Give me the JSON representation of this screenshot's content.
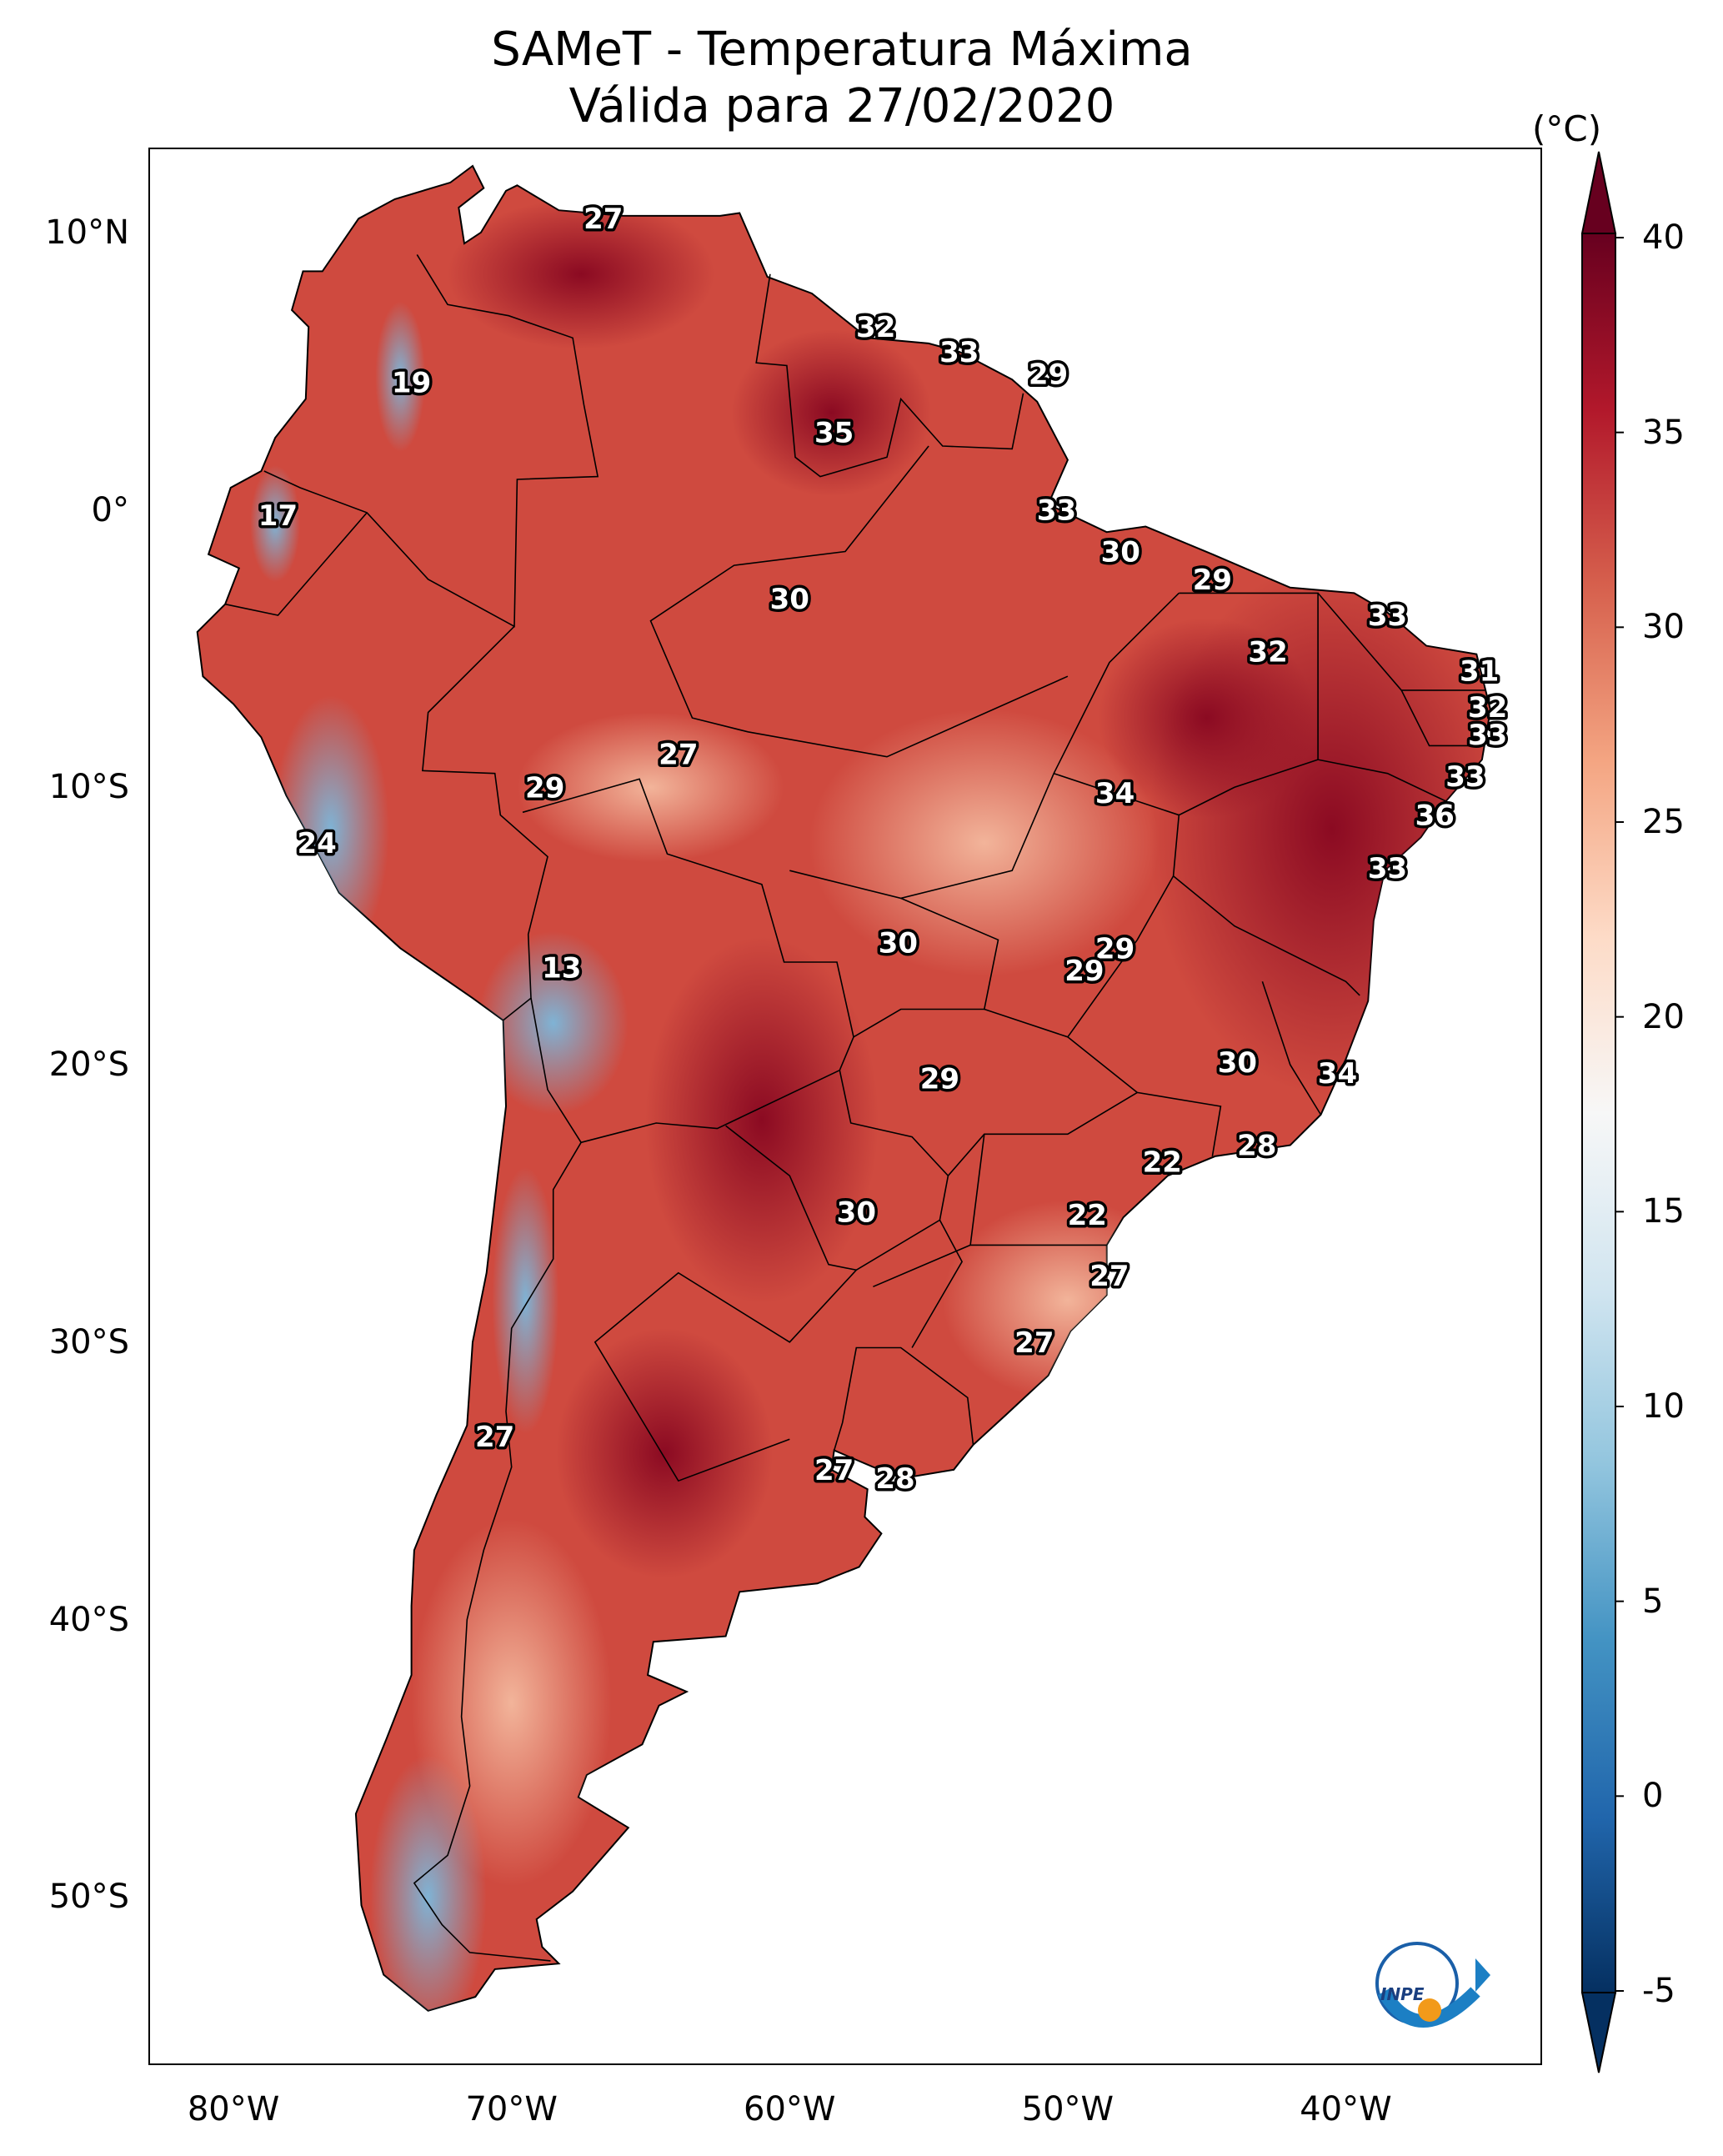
{
  "title": {
    "line1": "SAMeT - Temperatura Máxima",
    "line2": "Válida para 27/02/2020"
  },
  "map": {
    "lon_range": [
      -83,
      -33
    ],
    "lat_range": [
      -56,
      13
    ],
    "y_ticks": [
      {
        "lat": 10,
        "label": "10°N"
      },
      {
        "lat": 0,
        "label": "0°"
      },
      {
        "lat": -10,
        "label": "10°S"
      },
      {
        "lat": -20,
        "label": "20°S"
      },
      {
        "lat": -30,
        "label": "30°S"
      },
      {
        "lat": -40,
        "label": "40°S"
      },
      {
        "lat": -50,
        "label": "50°S"
      }
    ],
    "x_ticks": [
      {
        "lon": -80,
        "label": "80°W"
      },
      {
        "lon": -70,
        "label": "70°W"
      },
      {
        "lon": -60,
        "label": "60°W"
      },
      {
        "lon": -50,
        "label": "50°W"
      },
      {
        "lon": -40,
        "label": "40°W"
      }
    ],
    "stations": [
      {
        "lon": -66.7,
        "lat": 10.5,
        "value": "27"
      },
      {
        "lon": -56.9,
        "lat": 6.6,
        "value": "32"
      },
      {
        "lon": -53.9,
        "lat": 5.7,
        "value": "33"
      },
      {
        "lon": -50.7,
        "lat": 4.9,
        "value": "29"
      },
      {
        "lon": -73.6,
        "lat": 4.6,
        "value": "19"
      },
      {
        "lon": -58.4,
        "lat": 2.8,
        "value": "35"
      },
      {
        "lon": -78.4,
        "lat": -0.2,
        "value": "17"
      },
      {
        "lon": -50.4,
        "lat": 0.0,
        "value": "33"
      },
      {
        "lon": -48.1,
        "lat": -1.5,
        "value": "30"
      },
      {
        "lon": -44.8,
        "lat": -2.5,
        "value": "29"
      },
      {
        "lon": -60.0,
        "lat": -3.2,
        "value": "30"
      },
      {
        "lon": -38.5,
        "lat": -3.8,
        "value": "33"
      },
      {
        "lon": -42.8,
        "lat": -5.1,
        "value": "32"
      },
      {
        "lon": -35.2,
        "lat": -5.8,
        "value": "31"
      },
      {
        "lon": -34.9,
        "lat": -7.1,
        "value": "32"
      },
      {
        "lon": -34.9,
        "lat": -8.1,
        "value": "33"
      },
      {
        "lon": -64.0,
        "lat": -8.8,
        "value": "27"
      },
      {
        "lon": -35.7,
        "lat": -9.6,
        "value": "33"
      },
      {
        "lon": -68.8,
        "lat": -10.0,
        "value": "29"
      },
      {
        "lon": -48.3,
        "lat": -10.2,
        "value": "34"
      },
      {
        "lon": -36.8,
        "lat": -11.0,
        "value": "36"
      },
      {
        "lon": -77.0,
        "lat": -12.0,
        "value": "24"
      },
      {
        "lon": -38.5,
        "lat": -12.9,
        "value": "33"
      },
      {
        "lon": -56.1,
        "lat": -15.6,
        "value": "30"
      },
      {
        "lon": -48.3,
        "lat": -15.8,
        "value": "29"
      },
      {
        "lon": -49.4,
        "lat": -16.6,
        "value": "29"
      },
      {
        "lon": -68.2,
        "lat": -16.5,
        "value": "13"
      },
      {
        "lon": -43.9,
        "lat": -19.9,
        "value": "30"
      },
      {
        "lon": -40.3,
        "lat": -20.3,
        "value": "34"
      },
      {
        "lon": -54.6,
        "lat": -20.5,
        "value": "29"
      },
      {
        "lon": -43.2,
        "lat": -22.9,
        "value": "28"
      },
      {
        "lon": -46.6,
        "lat": -23.5,
        "value": "22"
      },
      {
        "lon": -57.6,
        "lat": -25.3,
        "value": "30"
      },
      {
        "lon": -49.3,
        "lat": -25.4,
        "value": "22"
      },
      {
        "lon": -48.5,
        "lat": -27.6,
        "value": "27"
      },
      {
        "lon": -51.2,
        "lat": -30.0,
        "value": "27"
      },
      {
        "lon": -70.6,
        "lat": -33.4,
        "value": "27"
      },
      {
        "lon": -58.4,
        "lat": -34.6,
        "value": "27"
      },
      {
        "lon": -56.2,
        "lat": -34.9,
        "value": "28"
      }
    ]
  },
  "colorbar": {
    "unit": "(°C)",
    "min": -5,
    "max": 40,
    "ticks": [
      "40",
      "35",
      "30",
      "25",
      "20",
      "15",
      "10",
      "5",
      "0",
      "-5"
    ],
    "colors": [
      "#053061",
      "#2166ac",
      "#4393c3",
      "#92c5de",
      "#d1e5f0",
      "#f7f7f7",
      "#fddbc7",
      "#f4a582",
      "#d6604d",
      "#b2182b",
      "#67001f"
    ]
  },
  "logo": {
    "text": "INPE"
  }
}
